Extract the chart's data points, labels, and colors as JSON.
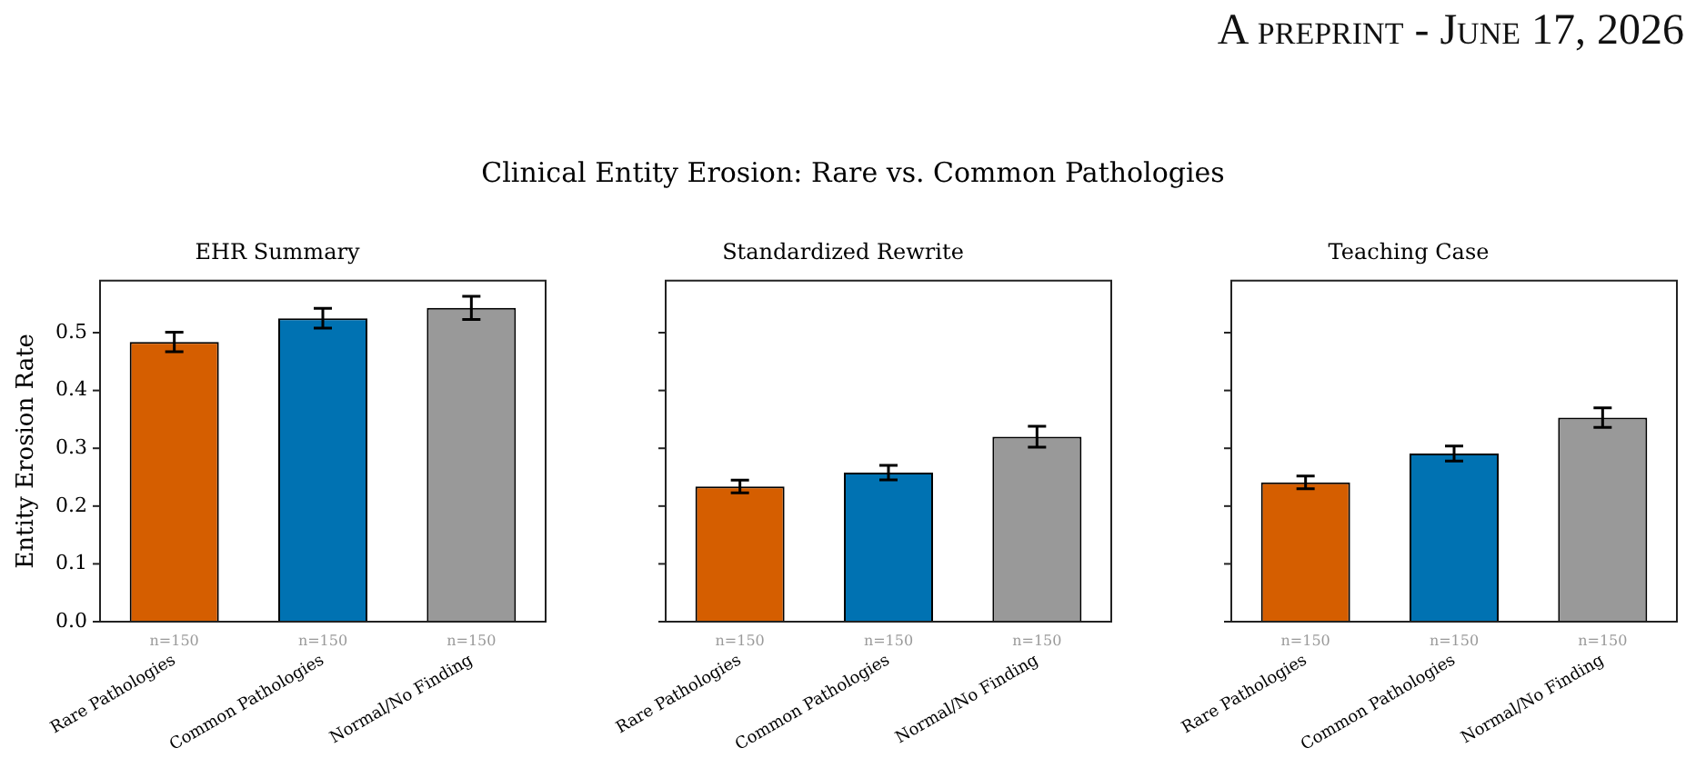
{
  "chart_data": [
    {
      "type": "bar",
      "title": "EHR Summary",
      "ylabel": "Entity Erosion Rate",
      "categories": [
        "Rare Pathologies",
        "Common Pathologies",
        "Normal/No Finding"
      ],
      "values": [
        0.484,
        0.525,
        0.543
      ],
      "errors": [
        0.017,
        0.017,
        0.02
      ],
      "colors": [
        "#d55e00",
        "#0072b2",
        "#999999"
      ],
      "ylim": [
        0,
        0.59
      ],
      "yticks": [
        {
          "value": 0,
          "label": "0.0"
        },
        0.1,
        0.2,
        0.3,
        0.4,
        0.5
      ],
      "grid": false,
      "annotations": [
        "A preprint - June 17, 2026",
        "Clinical Entity Erosion: Rare vs. Common Pathologies",
        "n=150",
        "n=150",
        "n=150"
      ]
    },
    {
      "type": "bar",
      "title": "Standardized Rewrite",
      "categories": [
        "Rare Pathologies",
        "Common Pathologies",
        "Normal/No Finding"
      ],
      "values": [
        0.234,
        0.258,
        0.32
      ],
      "errors": [
        0.011,
        0.0125,
        0.018
      ],
      "colors": [
        "#d55e00",
        "#0072b2",
        "#999999"
      ],
      "ylim": [
        0,
        0.59
      ],
      "yticks": [
        0,
        0.1,
        0.2,
        0.3,
        0.4,
        0.5
      ],
      "grid": false,
      "tick_labels": "x",
      "annotations": [
        "n=150",
        "n=150",
        "n=150"
      ]
    },
    {
      "type": "bar",
      "title": "Teaching Case",
      "categories": [
        "Rare Pathologies",
        "Common Pathologies",
        "Normal/No Finding"
      ],
      "values": [
        0.241,
        0.291,
        0.353
      ],
      "errors": [
        0.011,
        0.013,
        0.017
      ],
      "colors": [
        "#d55e00",
        "#0072b2",
        "#999999"
      ],
      "ylim": [
        0,
        0.59
      ],
      "yticks": [
        0,
        0.1,
        0.2,
        0.3,
        0.4,
        0.5
      ],
      "grid": false,
      "tick_labels": "x",
      "annotations": [
        "n=150",
        "n=150",
        "n=150"
      ]
    }
  ]
}
